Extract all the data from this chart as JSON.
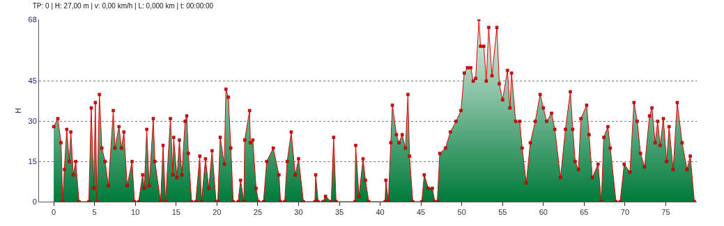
{
  "chart_data": {
    "type": "area",
    "title": "TP: 0 | H: 27,00 m | v: 0,00 km/h | L: 0,000 km | t: 00:00:00",
    "ylabel": "H",
    "series": [
      {
        "color": "#e00000",
        "x": [
          0,
          0.5,
          0.9,
          1.1,
          1.3,
          1.6,
          1.9,
          2.1,
          2.4,
          2.7,
          3.1,
          4.3,
          4.6,
          4.9,
          5.1,
          5.3,
          5.6,
          5.9,
          6.3,
          6.7,
          7.3,
          7.5,
          8.0,
          8.3,
          8.6,
          9.0,
          9.6,
          9.9,
          10.4,
          10.9,
          11.1,
          11.4,
          11.7,
          12.2,
          12.4,
          13.1,
          13.4,
          13.7,
          14.3,
          14.6,
          14.7,
          15.1,
          15.4,
          15.7,
          16.1,
          16.3,
          16.5,
          16.9,
          17.4,
          17.9,
          18.1,
          18.6,
          19.0,
          19.4,
          19.9,
          20.1,
          20.4,
          20.9,
          21.1,
          21.4,
          21.7,
          22.0,
          22.6,
          22.9,
          23.3,
          23.4,
          24.0,
          24.1,
          24.4,
          24.8,
          25.1,
          25.7,
          26.1,
          26.9,
          27.6,
          27.8,
          28.3,
          28.6,
          29.1,
          29.6,
          30.0,
          30.6,
          32.0,
          32.1,
          32.4,
          33.0,
          33.3,
          34.0,
          34.3,
          34.6,
          36.9,
          37.0,
          37.4,
          37.9,
          38.2,
          38.6,
          40.6,
          40.7,
          41.0,
          41.3,
          41.5,
          42.0,
          42.3,
          42.7,
          43.1,
          43.4,
          43.6,
          44.0,
          45.1,
          45.4,
          45.9,
          46.4,
          46.7,
          47.0,
          47.3,
          48.0,
          48.6,
          49.3,
          49.9,
          50.3,
          50.7,
          51.1,
          51.4,
          51.7,
          52.1,
          52.3,
          52.7,
          53.0,
          53.3,
          53.7,
          54.3,
          54.6,
          55.0,
          55.6,
          55.9,
          56.1,
          56.6,
          57.1,
          57.4,
          57.9,
          58.4,
          59.0,
          59.6,
          60.0,
          60.4,
          61.0,
          61.4,
          62.1,
          62.7,
          63.3,
          63.6,
          63.9,
          64.3,
          64.6,
          65.3,
          65.6,
          66.0,
          66.7,
          67.1,
          67.4,
          67.9,
          68.2,
          68.9,
          69.4,
          69.9,
          70.6,
          71.1,
          71.5,
          71.9,
          72.4,
          73.0,
          73.3,
          73.7,
          74.0,
          74.3,
          74.7,
          75.1,
          75.4,
          75.9,
          76.4,
          77.0,
          77.6,
          78.0,
          78.5
        ],
        "values": [
          28,
          31,
          22,
          0,
          12,
          27,
          15,
          26,
          10,
          15,
          0,
          0,
          35,
          5,
          37,
          0,
          40,
          20,
          15,
          6,
          34,
          20,
          28,
          20,
          26,
          6,
          15,
          0,
          0,
          10,
          5,
          27,
          6,
          31,
          15,
          0,
          21,
          0,
          31,
          10,
          24,
          9,
          23,
          10,
          30,
          32,
          18,
          0,
          0,
          17,
          0,
          16,
          5,
          19,
          0,
          0,
          24,
          14,
          42,
          39,
          20,
          0,
          0,
          8,
          0,
          23,
          34,
          22,
          23,
          5,
          0,
          0,
          15,
          20,
          10,
          0,
          0,
          15,
          26,
          10,
          16,
          0,
          0,
          10,
          0,
          0,
          2,
          0,
          24,
          0,
          0,
          21,
          2,
          16,
          8,
          0,
          0,
          8,
          0,
          22,
          36,
          25,
          22,
          25,
          20,
          40,
          17,
          0,
          0,
          10,
          5,
          5,
          0,
          0,
          18,
          20,
          26,
          30,
          34,
          48,
          50,
          50,
          45,
          46,
          68,
          58,
          58,
          45,
          65,
          47,
          65,
          44,
          38,
          49,
          35,
          48,
          30,
          30,
          20,
          7,
          22,
          30,
          40,
          35,
          30,
          33,
          27,
          9,
          27,
          41,
          27,
          15,
          12,
          31,
          36,
          25,
          9,
          14,
          0,
          24,
          28,
          20,
          0,
          0,
          14,
          11,
          37,
          30,
          18,
          13,
          32,
          35,
          22,
          30,
          21,
          31,
          15,
          28,
          12,
          37,
          22,
          12,
          17,
          0
        ]
      }
    ],
    "xlim": [
      -1.8,
      78.8
    ],
    "xticks": [
      0,
      5,
      10,
      15,
      20,
      25,
      30,
      35,
      40,
      45,
      50,
      55,
      60,
      65,
      70,
      75
    ],
    "ylim": [
      0,
      68
    ],
    "yticks": [
      0,
      15,
      30,
      45,
      68
    ],
    "grid": "y",
    "marker": "square",
    "line_style": "solid"
  }
}
